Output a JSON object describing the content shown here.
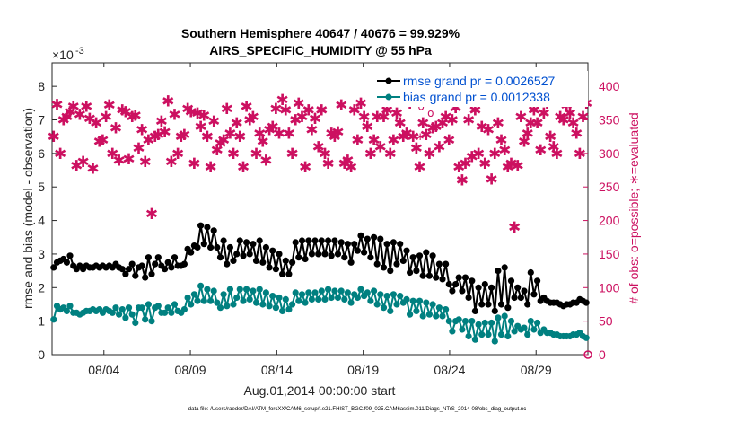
{
  "colors": {
    "rmse": "#000000",
    "bias": "#008080",
    "obs": "#cc1060",
    "legend_text": "#0050d0"
  },
  "chart_data": {
    "type": "line",
    "title": "Southern Hemisphere 40647 / 40676 = 99.929%",
    "subtitle": "AIRS_SPECIFIC_HUMIDITY @ 55 hPa",
    "xlabel": "Aug.01,2014 00:00:00 start",
    "ylabel": "rmse and bias (model - observation)",
    "y2label": "# of obs: o=possible; ∗=evaluated",
    "y_exponent": "×10",
    "y_exponent_power": "-3",
    "footer": "data file: /Users/raeder/DAI/ATM_forcXX/CAM6_setup/f.e21.FHIST_BGC.f09_025.CAM6assim.011/Diags_NTrS_2014-08/obs_diag_output.nc",
    "x_tick_labels": [
      "08/04",
      "08/09",
      "08/14",
      "08/19",
      "08/24",
      "08/29"
    ],
    "x_tick_days": [
      4,
      9,
      14,
      19,
      24,
      29
    ],
    "xlim": [
      1,
      32
    ],
    "ylim": [
      0,
      8.7
    ],
    "y_ticks": [
      0,
      1,
      2,
      3,
      4,
      5,
      6,
      7,
      8
    ],
    "y_tick_labels": [
      "0",
      "1",
      "2",
      "3",
      "4",
      "5",
      "6",
      "7",
      "8"
    ],
    "y2lim": [
      0,
      435
    ],
    "y2_ticks": [
      0,
      50,
      100,
      150,
      200,
      250,
      300,
      350,
      400
    ],
    "y2_tick_labels": [
      "0",
      "50",
      "100",
      "150",
      "200",
      "250",
      "300",
      "350",
      "400"
    ],
    "legend": [
      "rmse grand pr = 0.0026527",
      "bias grand pr = 0.0012338"
    ],
    "series": [
      {
        "name": "rmse",
        "axis": "left",
        "values": [
          2.6,
          2.75,
          2.8,
          2.85,
          2.75,
          2.95,
          2.65,
          2.55,
          2.65,
          2.55,
          2.65,
          2.6,
          2.6,
          2.65,
          2.6,
          2.65,
          2.6,
          2.65,
          2.6,
          2.7,
          2.6,
          2.55,
          2.4,
          2.55,
          2.7,
          2.35,
          2.6,
          2.65,
          2.3,
          2.9,
          2.4,
          2.7,
          2.9,
          2.65,
          2.55,
          2.75,
          2.6,
          2.9,
          2.65,
          2.65,
          2.7,
          3.15,
          3.05,
          3.25,
          3.2,
          3.85,
          3.3,
          3.8,
          3.2,
          3.7,
          3.2,
          2.9,
          3.4,
          2.7,
          3.2,
          2.8,
          3.0,
          3.4,
          2.95,
          3.35,
          3.0,
          3.3,
          2.8,
          3.4,
          2.75,
          3.2,
          2.6,
          3.1,
          2.55,
          3.0,
          2.4,
          2.8,
          2.4,
          2.75,
          3.35,
          2.9,
          3.4,
          2.85,
          3.4,
          3.0,
          3.4,
          3.0,
          3.4,
          3.0,
          3.4,
          2.95,
          3.4,
          3.0,
          3.35,
          2.9,
          3.3,
          2.75,
          3.3,
          3.1,
          3.55,
          3.05,
          3.45,
          2.9,
          3.5,
          2.7,
          3.45,
          2.6,
          3.3,
          2.5,
          3.35,
          2.7,
          3.3,
          2.8,
          3.1,
          2.45,
          2.9,
          2.5,
          2.95,
          2.35,
          3.05,
          2.35,
          2.95,
          2.3,
          2.7,
          2.25,
          2.7,
          2.1,
          1.9,
          2.1,
          2.3,
          1.9,
          2.3,
          1.7,
          2.2,
          1.3,
          2.0,
          1.5,
          2.1,
          1.5,
          2.0,
          1.3,
          2.5,
          1.5,
          2.6,
          1.4,
          2.2,
          1.7,
          2.0,
          1.7,
          1.9,
          1.5,
          2.45,
          1.8,
          2.2,
          1.6,
          1.7,
          1.6,
          1.55,
          1.55,
          1.55,
          1.5,
          1.45,
          1.5,
          1.5,
          1.55,
          1.55,
          1.65,
          1.6,
          1.55
        ]
      },
      {
        "name": "bias",
        "axis": "left",
        "values": [
          1.05,
          1.45,
          1.35,
          1.4,
          1.3,
          1.45,
          1.25,
          1.25,
          1.2,
          1.25,
          1.3,
          1.3,
          1.35,
          1.3,
          1.35,
          1.25,
          1.35,
          1.3,
          1.25,
          1.4,
          1.2,
          1.35,
          1.1,
          1.4,
          1.2,
          0.95,
          1.4,
          1.4,
          1.05,
          1.5,
          1.0,
          1.4,
          1.45,
          1.25,
          1.25,
          1.4,
          1.25,
          1.5,
          1.3,
          1.25,
          1.35,
          1.7,
          1.5,
          1.8,
          1.6,
          2.05,
          1.6,
          1.95,
          1.6,
          1.9,
          1.55,
          1.4,
          1.8,
          1.45,
          1.95,
          1.5,
          1.7,
          1.95,
          1.6,
          1.95,
          1.65,
          1.9,
          1.55,
          1.95,
          1.5,
          1.85,
          1.45,
          1.75,
          1.4,
          1.7,
          1.3,
          1.65,
          1.35,
          1.5,
          1.85,
          1.6,
          1.8,
          1.55,
          1.85,
          1.65,
          1.85,
          1.65,
          1.9,
          1.65,
          1.95,
          1.7,
          1.9,
          1.7,
          1.9,
          1.65,
          1.85,
          1.55,
          1.8,
          1.7,
          1.95,
          1.75,
          1.85,
          1.6,
          1.9,
          1.5,
          1.8,
          1.4,
          1.75,
          1.3,
          1.8,
          1.5,
          1.75,
          1.55,
          1.65,
          1.2,
          1.6,
          1.3,
          1.6,
          1.15,
          1.55,
          1.2,
          1.5,
          1.15,
          1.4,
          1.15,
          1.35,
          1.0,
          0.7,
          1.0,
          1.05,
          0.75,
          1.0,
          0.55,
          1.0,
          0.45,
          0.9,
          0.6,
          0.95,
          0.6,
          0.95,
          0.4,
          1.1,
          0.6,
          1.15,
          0.55,
          1.0,
          0.7,
          0.85,
          0.75,
          0.8,
          0.6,
          1.0,
          0.75,
          0.95,
          0.65,
          0.75,
          0.65,
          0.65,
          0.6,
          0.6,
          0.55,
          0.55,
          0.55,
          0.55,
          0.6,
          0.6,
          0.65,
          0.55,
          0.5
        ]
      },
      {
        "name": "obs",
        "axis": "right",
        "values": [
          325,
          373,
          300,
          350,
          355,
          362,
          370,
          282,
          358,
          288,
          370,
          352,
          278,
          345,
          318,
          320,
          355,
          372,
          300,
          338,
          290,
          365,
          362,
          292,
          355,
          357,
          308,
          335,
          288,
          320,
          210,
          325,
          328,
          348,
          332,
          378,
          288,
          358,
          300,
          325,
          328,
          367,
          362,
          285,
          360,
          340,
          357,
          325,
          280,
          348,
          305,
          315,
          320,
          367,
          330,
          300,
          345,
          325,
          280,
          370,
          350,
          355,
          300,
          330,
          318,
          290,
          335,
          340,
          367,
          330,
          380,
          365,
          330,
          300,
          350,
          375,
          355,
          280,
          365,
          335,
          352,
          310,
          365,
          300,
          285,
          330,
          325,
          332,
          372,
          285,
          290,
          280,
          365,
          320,
          375,
          355,
          340,
          300,
          320,
          355,
          310,
          355,
          365,
          300,
          320,
          360,
          345,
          325,
          330,
          375,
          325,
          308,
          280,
          345,
          328,
          300,
          338,
          340,
          310,
          345,
          355,
          320,
          350,
          368,
          280,
          260,
          285,
          350,
          295,
          365,
          300,
          340,
          285,
          335,
          262,
          300,
          345,
          320,
          305,
          280,
          285,
          190,
          282,
          355,
          318,
          330,
          345,
          365,
          345,
          305,
          360,
          375,
          325,
          310,
          300,
          355,
          350,
          372,
          360,
          345,
          330,
          300,
          355,
          375
        ]
      }
    ],
    "annotations": [
      {
        "symbol": "o",
        "day": 22.35,
        "value": 370
      },
      {
        "symbol": "o",
        "day": 22.9,
        "value": 360
      },
      {
        "symbol": "∗",
        "day": 22.3,
        "value": 325
      }
    ]
  }
}
